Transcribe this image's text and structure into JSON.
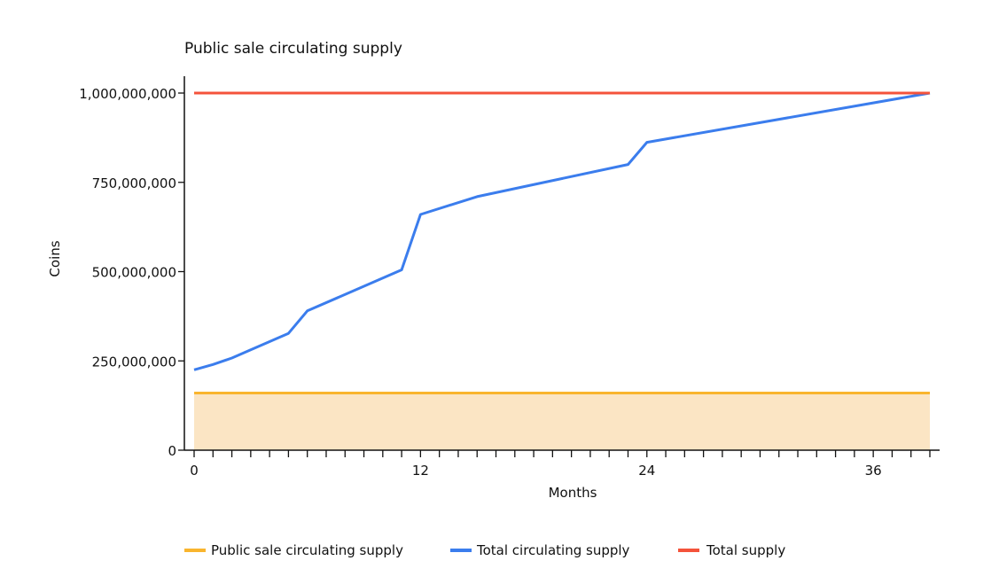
{
  "colors": {
    "public_sale": "#f9b52e",
    "public_sale_fill": "#fbe5c4",
    "total_circulating": "#3b7ded",
    "total_supply": "#f4533b",
    "axis": "#111111"
  },
  "chart_data": {
    "type": "line",
    "title": "Public sale circulating supply",
    "xlabel": "Months",
    "ylabel": "Coins",
    "xlim": [
      0,
      39
    ],
    "ylim": [
      0,
      1000000000
    ],
    "x_tick_labels": [
      {
        "value": 0,
        "label": "0"
      },
      {
        "value": 12,
        "label": "12"
      },
      {
        "value": 24,
        "label": "24"
      },
      {
        "value": 36,
        "label": "36"
      }
    ],
    "y_tick_labels": [
      {
        "value": 0,
        "label": "0"
      },
      {
        "value": 250000000,
        "label": "250,000,000"
      },
      {
        "value": 500000000,
        "label": "500,000,000"
      },
      {
        "value": 750000000,
        "label": "750,000,000"
      },
      {
        "value": 1000000000,
        "label": "1,000,000,000"
      }
    ],
    "minor_x_ticks": [
      0,
      1,
      2,
      3,
      4,
      5,
      6,
      7,
      8,
      9,
      10,
      11,
      12,
      13,
      14,
      15,
      16,
      17,
      18,
      19,
      20,
      21,
      22,
      23,
      24,
      25,
      26,
      27,
      28,
      29,
      30,
      31,
      32,
      33,
      34,
      35,
      36,
      37,
      38,
      39
    ],
    "grid": false,
    "legend_position": "bottom-left",
    "series": [
      {
        "name": "Public sale circulating supply",
        "kind": "area",
        "x": [
          0,
          39
        ],
        "y": [
          160000000,
          160000000
        ]
      },
      {
        "name": "Total circulating supply",
        "kind": "line",
        "x": [
          0,
          1,
          2,
          3,
          4,
          5,
          6,
          11,
          12,
          15,
          23,
          24,
          39
        ],
        "y": [
          225000000,
          240000000,
          258000000,
          281000000,
          304000000,
          327000000,
          390000000,
          505000000,
          660000000,
          710000000,
          800000000,
          862000000,
          1000000000
        ]
      },
      {
        "name": "Total supply",
        "kind": "line",
        "x": [
          0,
          39
        ],
        "y": [
          1000000000,
          1000000000
        ]
      }
    ]
  }
}
